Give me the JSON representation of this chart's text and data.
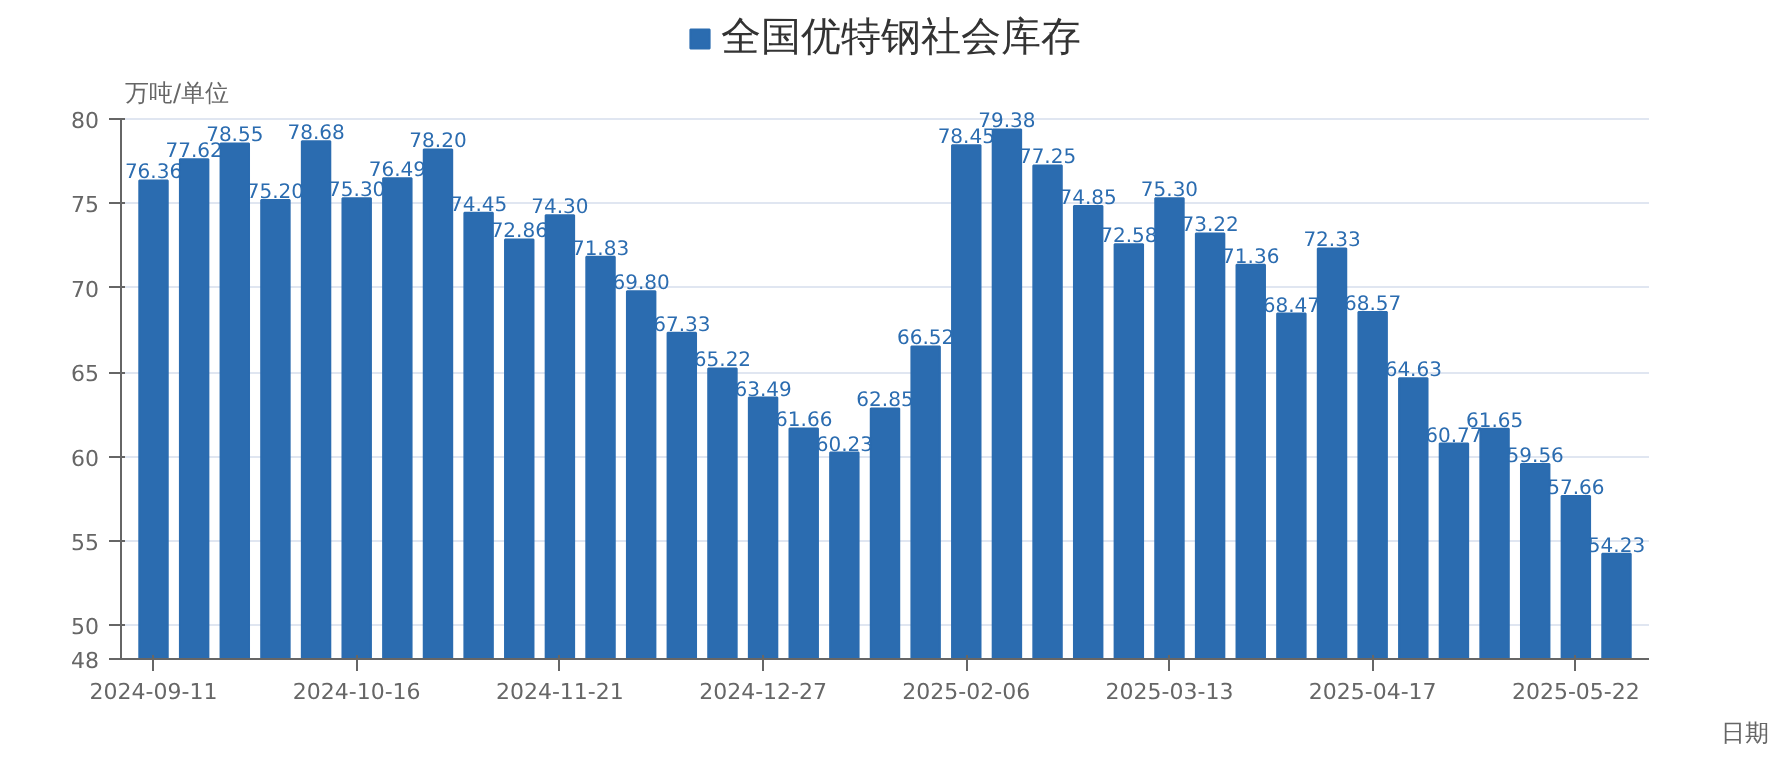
{
  "chart_data": {
    "type": "bar",
    "categories": [
      "2024-09-11",
      null,
      null,
      null,
      null,
      "2024-10-16",
      null,
      null,
      null,
      null,
      "2024-11-21",
      null,
      null,
      null,
      null,
      "2024-12-27",
      null,
      null,
      null,
      null,
      "2025-02-06",
      null,
      null,
      null,
      null,
      "2025-03-13",
      null,
      null,
      null,
      null,
      "2025-04-17",
      null,
      null,
      null,
      null,
      "2025-05-22",
      null
    ],
    "series": [
      {
        "name": "全国优特钢社会库存",
        "color": "#2b6cb0",
        "value_labels": [
          "76.36",
          "77.62",
          "78.55",
          "75.20",
          "78.68",
          "75.30",
          "76.49",
          "78.20",
          "74.45",
          "72.86",
          "74.30",
          "71.83",
          "69.80",
          "67.33",
          "65.22",
          "63.49",
          "61.66",
          "60.23",
          "62.85",
          "66.52",
          "78.45",
          "79.38",
          "77.25",
          "74.85",
          "72.58",
          "75.30",
          "73.22",
          "71.36",
          "68.47",
          "72.33",
          "68.57",
          "64.63",
          "60.77",
          "61.65",
          "59.56",
          "57.66",
          "54.23"
        ],
        "values": [
          76.36,
          77.62,
          78.55,
          75.2,
          78.68,
          75.3,
          76.49,
          78.2,
          74.45,
          72.86,
          74.3,
          71.83,
          69.8,
          67.33,
          65.22,
          63.49,
          61.66,
          60.23,
          62.85,
          66.52,
          78.45,
          79.38,
          77.25,
          74.85,
          72.58,
          75.3,
          73.22,
          71.36,
          68.47,
          72.33,
          68.57,
          64.63,
          60.77,
          61.65,
          59.56,
          57.66,
          54.23
        ]
      }
    ],
    "xlabel": "日期",
    "ylabel": "万吨/单位",
    "ylim": [
      48,
      80
    ],
    "yticks": [
      48,
      50,
      55,
      60,
      65,
      70,
      75,
      80
    ],
    "grid": "y",
    "legend": "top"
  }
}
